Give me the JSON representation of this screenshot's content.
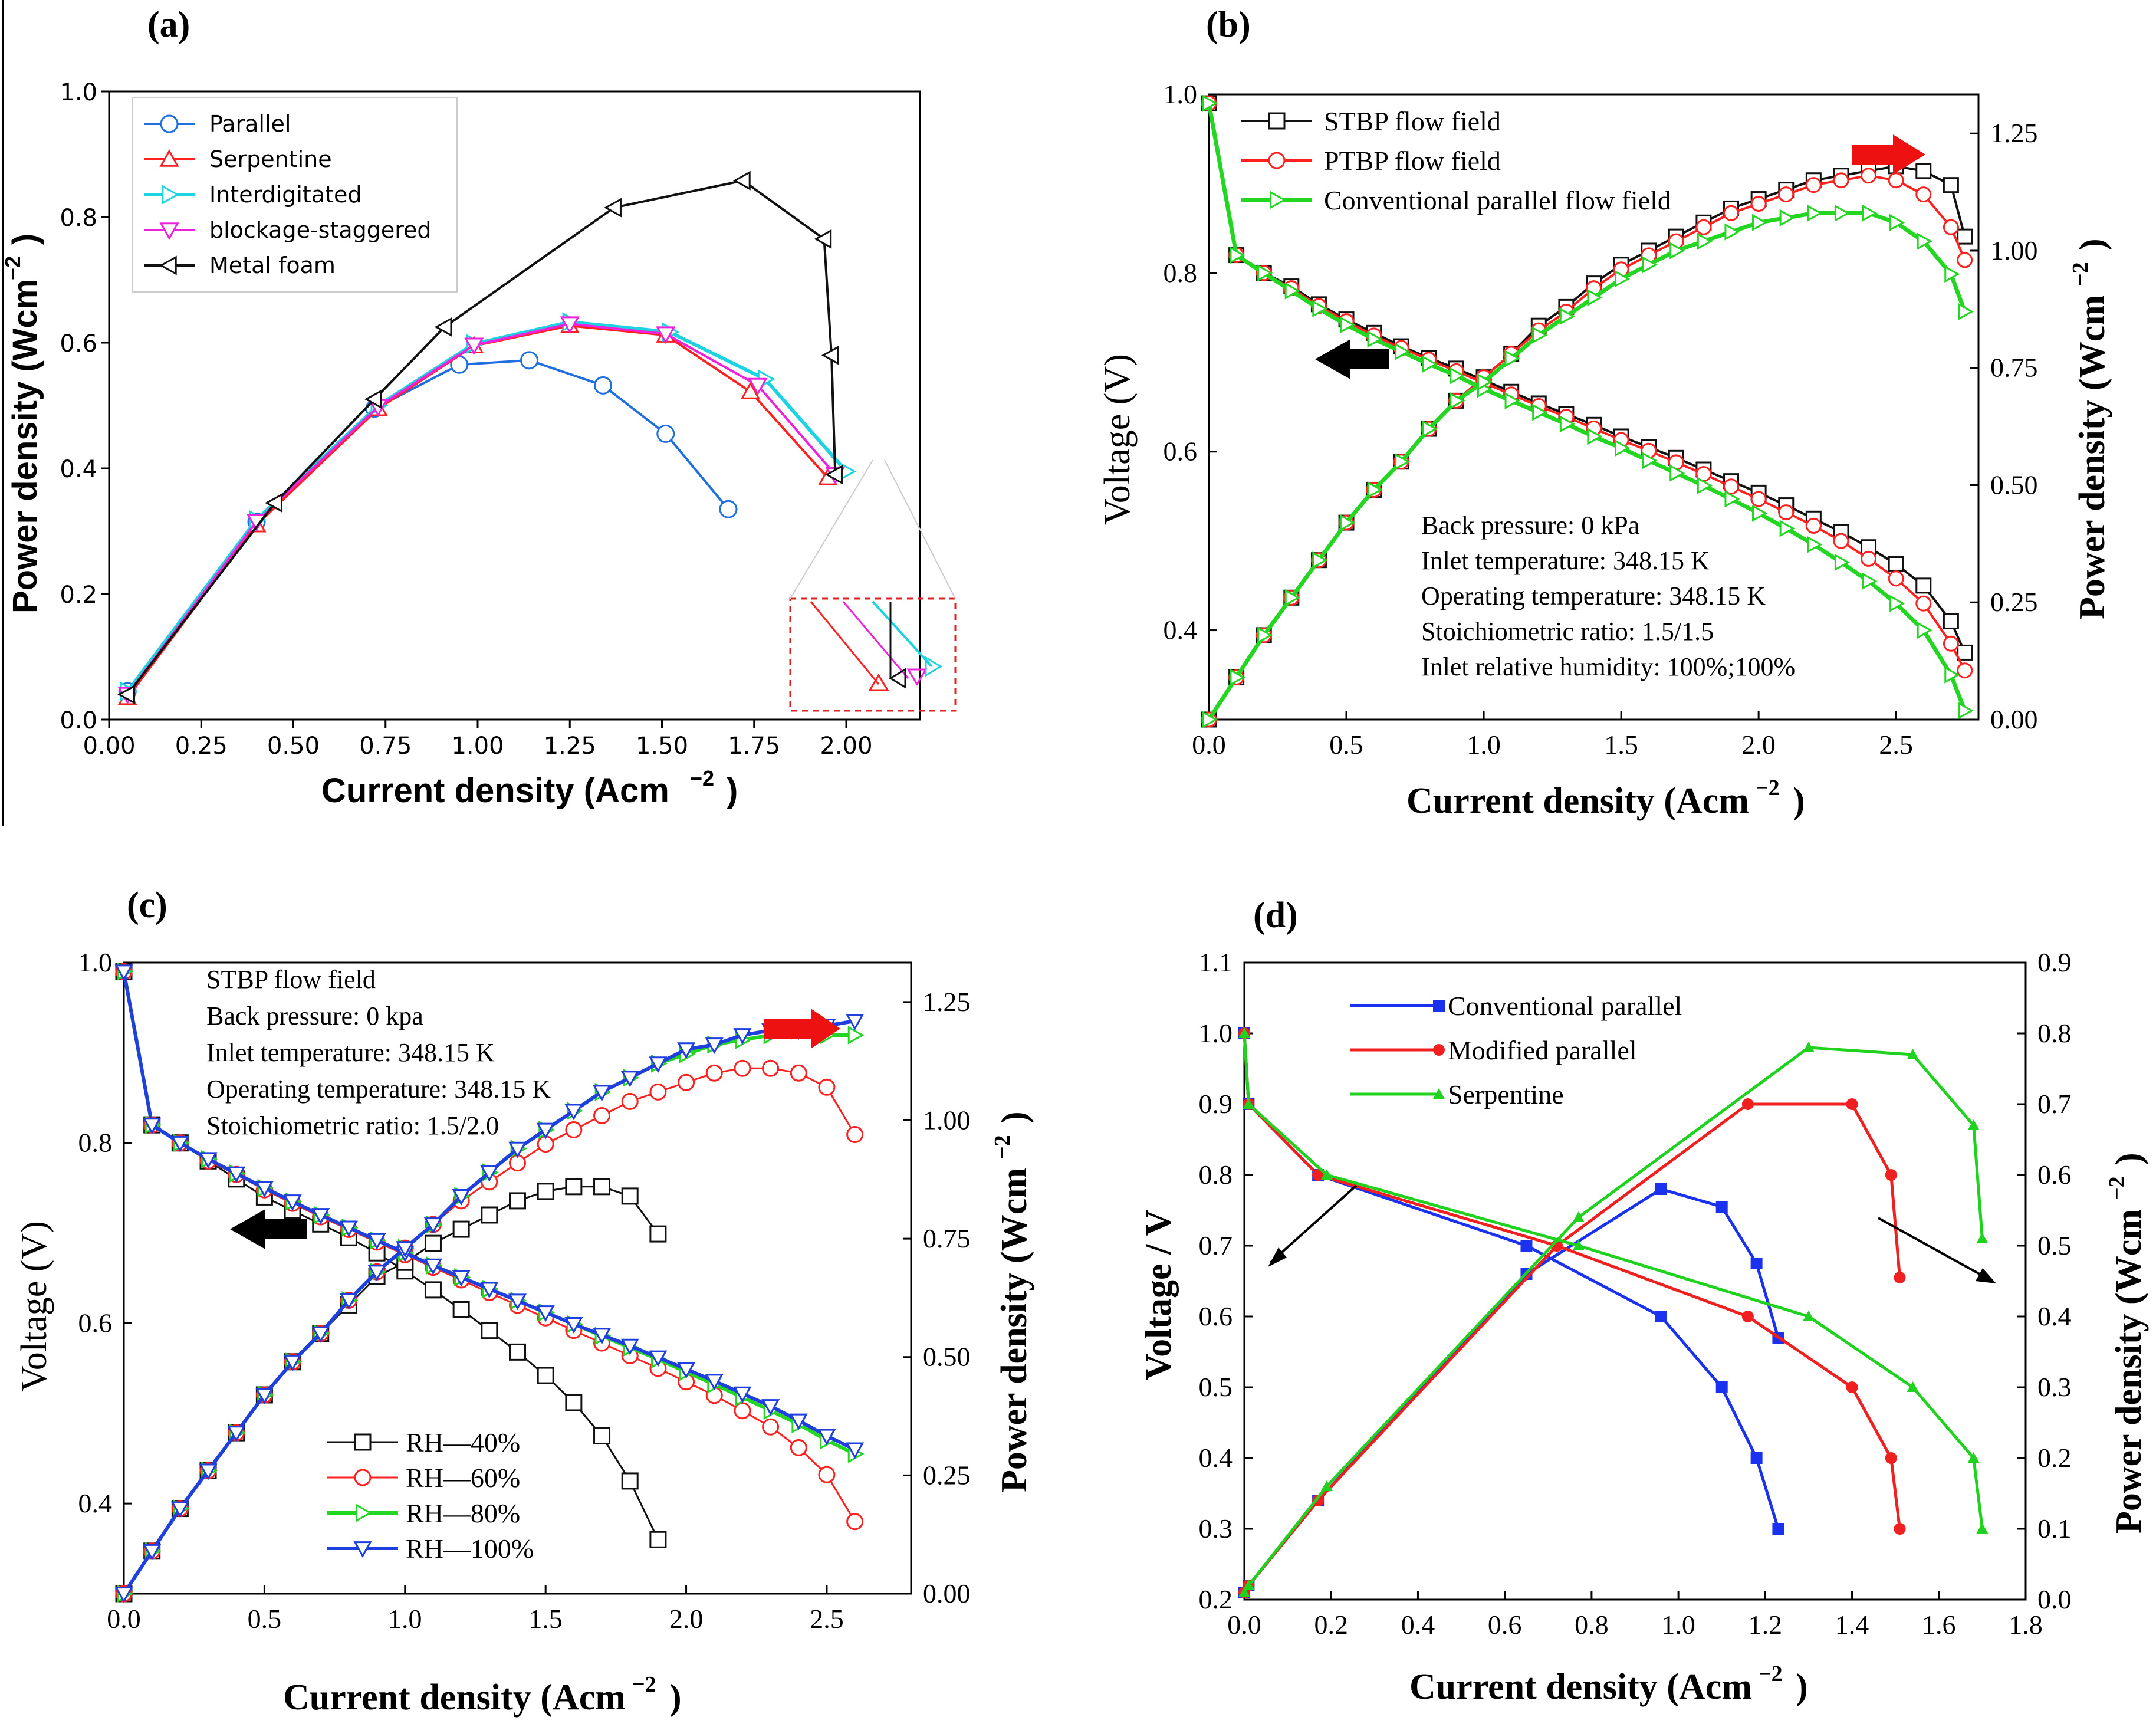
{
  "chart_data": [
    {
      "panel": "(a)",
      "type": "line",
      "xlabel": "Current density (Acm",
      "ylabel": "Power density (Wcm",
      "unit_exp": "−2",
      "xlim": [
        0,
        2.2
      ],
      "ylim": [
        0,
        1.0
      ],
      "xticks": [
        "0.00",
        "0.25",
        "0.50",
        "0.75",
        "1.00",
        "1.25",
        "1.50",
        "1.75",
        "2.00"
      ],
      "yticks": [
        "0.0",
        "0.2",
        "0.4",
        "0.6",
        "0.8",
        "1.0"
      ],
      "legend_position": "top-left",
      "series": [
        {
          "name": "Parallel",
          "color": "#1f6fe0",
          "marker": "circle",
          "x": [
            0.05,
            0.4,
            0.72,
            0.95,
            1.14,
            1.34,
            1.51,
            1.68
          ],
          "y": [
            0.045,
            0.315,
            0.495,
            0.565,
            0.572,
            0.532,
            0.455,
            0.335
          ]
        },
        {
          "name": "Serpentine",
          "color": "#ff2020",
          "marker": "triangle-up",
          "x": [
            0.05,
            0.4,
            0.73,
            0.99,
            1.25,
            1.51,
            1.74,
            1.95
          ],
          "y": [
            0.035,
            0.31,
            0.495,
            0.595,
            0.627,
            0.612,
            0.522,
            0.385
          ]
        },
        {
          "name": "Interdigitated",
          "color": "#1cd3e0",
          "marker": "triangle-right",
          "x": [
            0.05,
            0.4,
            0.73,
            0.99,
            1.25,
            1.52,
            1.78,
            2.0
          ],
          "y": [
            0.045,
            0.318,
            0.5,
            0.598,
            0.633,
            0.617,
            0.542,
            0.395
          ]
        },
        {
          "name": "blockage-staggered",
          "color": "#ee22dd",
          "marker": "triangle-down",
          "x": [
            0.05,
            0.4,
            0.73,
            0.99,
            1.25,
            1.51,
            1.76,
            1.97
          ],
          "y": [
            0.04,
            0.315,
            0.498,
            0.596,
            0.63,
            0.614,
            0.532,
            0.39
          ]
        },
        {
          "name": "Metal foam",
          "color": "#111111",
          "marker": "triangle-left",
          "x": [
            0.05,
            0.45,
            0.72,
            0.91,
            1.37,
            1.72,
            1.94,
            1.96,
            1.97
          ],
          "y": [
            0.04,
            0.345,
            0.51,
            0.625,
            0.815,
            0.858,
            0.765,
            0.58,
            0.39
          ]
        }
      ]
    },
    {
      "panel": "(b)",
      "type": "line",
      "xlabel": "Current density (Acm",
      "ylabel_left": "Voltage (V)",
      "ylabel_right": "Power density (Wcm",
      "unit_exp": "−2",
      "xlim": [
        0,
        2.8
      ],
      "ylim_left": [
        0.3,
        1.0
      ],
      "ylim_right": [
        0,
        1.3333
      ],
      "xticks": [
        "0.0",
        "0.5",
        "1.0",
        "1.5",
        "2.0",
        "2.5"
      ],
      "yticks_left": [
        "0.4",
        "0.6",
        "0.8",
        "1.0"
      ],
      "yticks_right": [
        "0.00",
        "0.25",
        "0.50",
        "0.75",
        "1.00",
        "1.25"
      ],
      "legend_position": "top-left",
      "annotations": [
        "Back pressure: 0 kPa",
        "Inlet temperature: 348.15 K",
        "Operating temperature: 348.15 K",
        "Stoichiometric ratio: 1.5/1.5",
        "Inlet relative humidity: 100%;100%"
      ],
      "series": [
        {
          "name": "STBP flow field",
          "color": "#111111",
          "marker": "square-open"
        },
        {
          "name": "PTBP flow field",
          "color": "#ff2020",
          "marker": "circle-open"
        },
        {
          "name": "Conventional parallel flow field",
          "color": "#22d622",
          "marker": "triangle-open"
        }
      ],
      "polarization_x": [
        0,
        0.1,
        0.2,
        0.3,
        0.4,
        0.5,
        0.6,
        0.7,
        0.8,
        0.9,
        1.0,
        1.1,
        1.2,
        1.3,
        1.4,
        1.5,
        1.6,
        1.7,
        1.8,
        1.9,
        2.0,
        2.1,
        2.2,
        2.3,
        2.4,
        2.5,
        2.6,
        2.7,
        2.75
      ],
      "polarization_y": {
        "STBP flow field": [
          0.99,
          0.82,
          0.8,
          0.785,
          0.765,
          0.748,
          0.733,
          0.718,
          0.705,
          0.693,
          0.68,
          0.667,
          0.654,
          0.642,
          0.63,
          0.617,
          0.605,
          0.593,
          0.58,
          0.567,
          0.554,
          0.54,
          0.525,
          0.51,
          0.493,
          0.474,
          0.45,
          0.41,
          0.375
        ],
        "PTBP flow field": [
          0.99,
          0.82,
          0.8,
          0.783,
          0.763,
          0.746,
          0.73,
          0.716,
          0.703,
          0.69,
          0.677,
          0.664,
          0.651,
          0.639,
          0.626,
          0.613,
          0.601,
          0.588,
          0.575,
          0.561,
          0.547,
          0.532,
          0.517,
          0.5,
          0.48,
          0.458,
          0.43,
          0.385,
          0.355
        ],
        "Conventional parallel flow field": [
          0.99,
          0.82,
          0.8,
          0.78,
          0.76,
          0.742,
          0.726,
          0.712,
          0.698,
          0.685,
          0.67,
          0.657,
          0.644,
          0.631,
          0.617,
          0.604,
          0.59,
          0.576,
          0.562,
          0.547,
          0.531,
          0.514,
          0.496,
          0.476,
          0.455,
          0.43,
          0.4,
          0.35,
          0.31
        ]
      },
      "power_y": {
        "STBP flow field": [
          0.0,
          0.09,
          0.18,
          0.26,
          0.34,
          0.42,
          0.49,
          0.55,
          0.62,
          0.68,
          0.73,
          0.78,
          0.84,
          0.88,
          0.93,
          0.97,
          1.0,
          1.03,
          1.06,
          1.09,
          1.11,
          1.13,
          1.15,
          1.16,
          1.17,
          1.18,
          1.17,
          1.14,
          1.03
        ],
        "PTBP flow field": [
          0.0,
          0.09,
          0.18,
          0.26,
          0.34,
          0.42,
          0.49,
          0.55,
          0.62,
          0.68,
          0.73,
          0.78,
          0.83,
          0.87,
          0.92,
          0.96,
          0.99,
          1.02,
          1.05,
          1.08,
          1.1,
          1.12,
          1.14,
          1.15,
          1.16,
          1.15,
          1.12,
          1.05,
          0.98
        ],
        "Conventional parallel flow field": [
          0.0,
          0.09,
          0.18,
          0.26,
          0.34,
          0.42,
          0.49,
          0.55,
          0.62,
          0.68,
          0.72,
          0.77,
          0.82,
          0.86,
          0.9,
          0.94,
          0.97,
          1.0,
          1.02,
          1.04,
          1.06,
          1.07,
          1.08,
          1.08,
          1.08,
          1.06,
          1.02,
          0.95,
          0.87
        ]
      }
    },
    {
      "panel": "(c)",
      "type": "line",
      "xlabel": "Current density (Acm",
      "ylabel_left": "Voltage (V)",
      "ylabel_right": "Power density (Wcm",
      "unit_exp": "−2",
      "xlim": [
        0,
        2.8
      ],
      "ylim_left": [
        0.3,
        1.0
      ],
      "ylim_right": [
        0,
        1.3333
      ],
      "xticks": [
        "0.0",
        "0.5",
        "1.0",
        "1.5",
        "2.0",
        "2.5"
      ],
      "yticks_left": [
        "0.4",
        "0.6",
        "0.8",
        "1.0"
      ],
      "yticks_right": [
        "0.00",
        "0.25",
        "0.50",
        "0.75",
        "1.00",
        "1.25"
      ],
      "legend_position": "bottom-left",
      "annotations": [
        "STBP flow field",
        "Back pressure: 0 kpa",
        "Inlet temperature: 348.15 K",
        "Operating temperature: 348.15 K",
        "Stoichiometric ratio: 1.5/2.0"
      ],
      "series": [
        {
          "name": "RH—40%",
          "color": "#111111",
          "marker": "square-open",
          "x": [
            0,
            0.1,
            0.2,
            0.3,
            0.4,
            0.5,
            0.6,
            0.7,
            0.8,
            0.9,
            1.0,
            1.1,
            1.2,
            1.3,
            1.4,
            1.5,
            1.6,
            1.7,
            1.8,
            1.9
          ],
          "voltage": [
            0.99,
            0.82,
            0.8,
            0.78,
            0.76,
            0.74,
            0.725,
            0.71,
            0.695,
            0.678,
            0.658,
            0.637,
            0.615,
            0.592,
            0.568,
            0.542,
            0.512,
            0.475,
            0.425,
            0.36
          ],
          "power": [
            0.0,
            0.09,
            0.18,
            0.26,
            0.34,
            0.42,
            0.49,
            0.55,
            0.61,
            0.67,
            0.7,
            0.74,
            0.77,
            0.8,
            0.83,
            0.85,
            0.86,
            0.86,
            0.84,
            0.76
          ]
        },
        {
          "name": "RH—60%",
          "color": "#ff2020",
          "marker": "circle-open",
          "x": [
            0,
            0.1,
            0.2,
            0.3,
            0.4,
            0.5,
            0.6,
            0.7,
            0.8,
            0.9,
            1.0,
            1.1,
            1.2,
            1.3,
            1.4,
            1.5,
            1.6,
            1.7,
            1.8,
            1.9,
            2.0,
            2.1,
            2.2,
            2.3,
            2.4,
            2.5,
            2.6
          ],
          "voltage": [
            0.99,
            0.82,
            0.8,
            0.78,
            0.765,
            0.748,
            0.733,
            0.718,
            0.704,
            0.69,
            0.676,
            0.662,
            0.648,
            0.634,
            0.62,
            0.606,
            0.592,
            0.578,
            0.564,
            0.55,
            0.535,
            0.52,
            0.503,
            0.485,
            0.462,
            0.432,
            0.38
          ],
          "power": [
            0.0,
            0.09,
            0.18,
            0.26,
            0.34,
            0.42,
            0.49,
            0.55,
            0.62,
            0.68,
            0.73,
            0.78,
            0.83,
            0.87,
            0.91,
            0.95,
            0.98,
            1.01,
            1.04,
            1.06,
            1.08,
            1.1,
            1.11,
            1.11,
            1.1,
            1.07,
            0.97
          ]
        },
        {
          "name": "RH—80%",
          "color": "#22d622",
          "marker": "triangle-open",
          "x": [
            0,
            0.1,
            0.2,
            0.3,
            0.4,
            0.5,
            0.6,
            0.7,
            0.8,
            0.9,
            1.0,
            1.1,
            1.2,
            1.3,
            1.4,
            1.5,
            1.6,
            1.7,
            1.8,
            1.9,
            2.0,
            2.1,
            2.2,
            2.3,
            2.4,
            2.5,
            2.6
          ],
          "voltage": [
            0.99,
            0.82,
            0.8,
            0.782,
            0.766,
            0.75,
            0.735,
            0.72,
            0.706,
            0.692,
            0.678,
            0.664,
            0.651,
            0.638,
            0.625,
            0.612,
            0.599,
            0.586,
            0.573,
            0.56,
            0.546,
            0.532,
            0.518,
            0.503,
            0.488,
            0.47,
            0.455
          ],
          "power": [
            0.0,
            0.09,
            0.18,
            0.26,
            0.34,
            0.42,
            0.49,
            0.55,
            0.62,
            0.68,
            0.73,
            0.78,
            0.84,
            0.89,
            0.94,
            0.98,
            1.02,
            1.06,
            1.09,
            1.12,
            1.14,
            1.16,
            1.17,
            1.18,
            1.19,
            1.18,
            1.18
          ]
        },
        {
          "name": "RH—100%",
          "color": "#1f3fe0",
          "marker": "triangle-down-open",
          "x": [
            0,
            0.1,
            0.2,
            0.3,
            0.4,
            0.5,
            0.6,
            0.7,
            0.8,
            0.9,
            1.0,
            1.1,
            1.2,
            1.3,
            1.4,
            1.5,
            1.6,
            1.7,
            1.8,
            1.9,
            2.0,
            2.1,
            2.2,
            2.3,
            2.4,
            2.5,
            2.6
          ],
          "voltage": [
            0.99,
            0.82,
            0.8,
            0.782,
            0.766,
            0.75,
            0.735,
            0.72,
            0.706,
            0.692,
            0.678,
            0.664,
            0.651,
            0.638,
            0.625,
            0.612,
            0.599,
            0.587,
            0.575,
            0.562,
            0.549,
            0.536,
            0.522,
            0.508,
            0.492,
            0.475,
            0.46
          ],
          "power": [
            0.0,
            0.09,
            0.18,
            0.26,
            0.34,
            0.42,
            0.49,
            0.55,
            0.62,
            0.68,
            0.73,
            0.78,
            0.84,
            0.89,
            0.94,
            0.98,
            1.02,
            1.06,
            1.09,
            1.12,
            1.15,
            1.16,
            1.18,
            1.19,
            1.19,
            1.2,
            1.21
          ]
        }
      ]
    },
    {
      "panel": "(d)",
      "type": "line",
      "xlabel": "Current density (Acm",
      "ylabel_left": "Voltage / V",
      "ylabel_right": "Power density (Wcm",
      "unit_exp": "−2",
      "xlim": [
        0,
        1.8
      ],
      "ylim_left": [
        0.2,
        1.1
      ],
      "ylim_right": [
        0,
        0.9
      ],
      "xticks": [
        "0.0",
        "0.2",
        "0.4",
        "0.6",
        "0.8",
        "1.0",
        "1.2",
        "1.4",
        "1.6",
        "1.8"
      ],
      "yticks_left": [
        "0.2",
        "0.3",
        "0.4",
        "0.5",
        "0.6",
        "0.7",
        "0.8",
        "0.9",
        "1.0",
        "1.1"
      ],
      "yticks_right": [
        "0.0",
        "0.1",
        "0.2",
        "0.3",
        "0.4",
        "0.5",
        "0.6",
        "0.7",
        "0.8",
        "0.9"
      ],
      "legend_position": "top-left",
      "series": [
        {
          "name": "Conventional parallel",
          "color": "#1a32f0",
          "marker": "square",
          "vx": [
            0,
            0.01,
            0.17,
            0.65,
            0.96,
            1.1,
            1.18,
            1.23
          ],
          "voltage": [
            1.0,
            0.9,
            0.8,
            0.7,
            0.6,
            0.5,
            0.4,
            0.3
          ],
          "px": [
            0,
            0.01,
            0.17,
            0.65,
            0.96,
            1.1,
            1.18,
            1.23
          ],
          "power": [
            0.01,
            0.02,
            0.14,
            0.46,
            0.58,
            0.555,
            0.475,
            0.37
          ]
        },
        {
          "name": "Modified parallel",
          "color": "#f02020",
          "marker": "circle",
          "vx": [
            0,
            0.01,
            0.17,
            0.72,
            1.16,
            1.4,
            1.49,
            1.51
          ],
          "voltage": [
            1.0,
            0.9,
            0.8,
            0.7,
            0.6,
            0.5,
            0.4,
            0.3
          ],
          "px": [
            0,
            0.01,
            0.17,
            0.72,
            1.16,
            1.4,
            1.49,
            1.51
          ],
          "power": [
            0.01,
            0.02,
            0.14,
            0.5,
            0.7,
            0.7,
            0.6,
            0.455
          ]
        },
        {
          "name": "Serpentine",
          "color": "#1ed21e",
          "marker": "triangle-up",
          "vx": [
            0,
            0.01,
            0.19,
            0.77,
            1.3,
            1.54,
            1.68,
            1.7
          ],
          "voltage": [
            1.0,
            0.9,
            0.8,
            0.7,
            0.6,
            0.5,
            0.4,
            0.3
          ],
          "px": [
            0,
            0.01,
            0.19,
            0.77,
            1.3,
            1.54,
            1.68,
            1.7
          ],
          "power": [
            0.01,
            0.02,
            0.16,
            0.54,
            0.78,
            0.77,
            0.67,
            0.51
          ]
        }
      ]
    }
  ]
}
